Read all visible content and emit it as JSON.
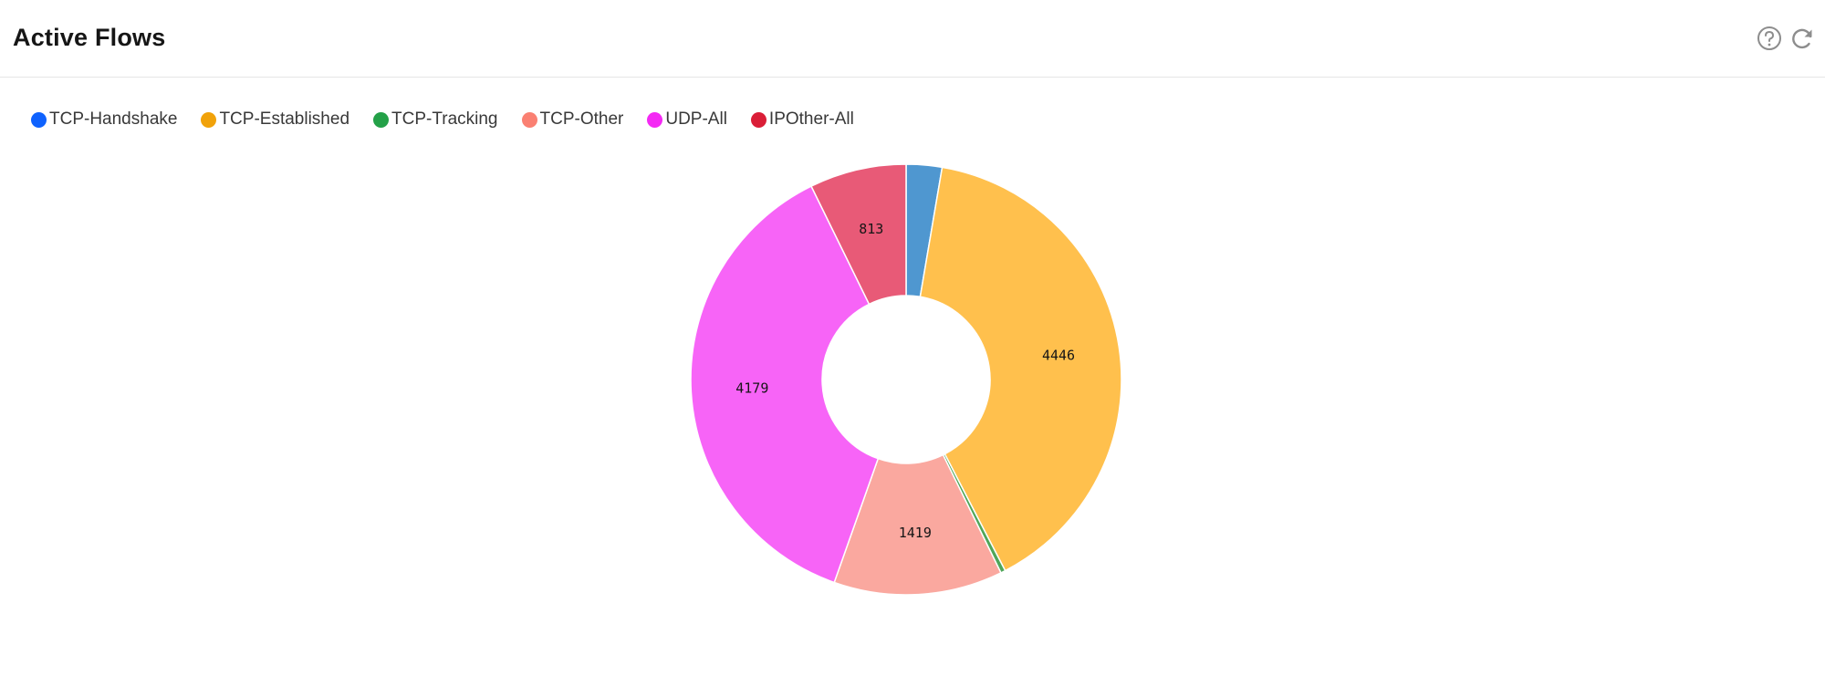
{
  "header": {
    "title": "Active Flows",
    "help_icon": "help-circle-icon",
    "refresh_icon": "refresh-icon"
  },
  "chart_data": {
    "type": "pie",
    "variant": "donut",
    "categories": [
      "TCP-Handshake",
      "TCP-Established",
      "TCP-Tracking",
      "TCP-Other",
      "UDP-All",
      "IPOther-All"
    ],
    "values": [
      300,
      4446,
      40,
      1419,
      4179,
      813
    ],
    "shown_labels": [
      "",
      "4446",
      "",
      "1419",
      "4179",
      "813"
    ],
    "legend_colors": [
      "#0f62fe",
      "#f1a20a",
      "#24a148",
      "#fa8072",
      "#f429f4",
      "#da1e37"
    ],
    "slice_colors": [
      "#4f97d0",
      "#ffc04d",
      "#4fa65a",
      "#faa89f",
      "#f764f7",
      "#e85a77"
    ],
    "legend_position": "top-left",
    "start_angle": "top",
    "direction": "clockwise"
  }
}
